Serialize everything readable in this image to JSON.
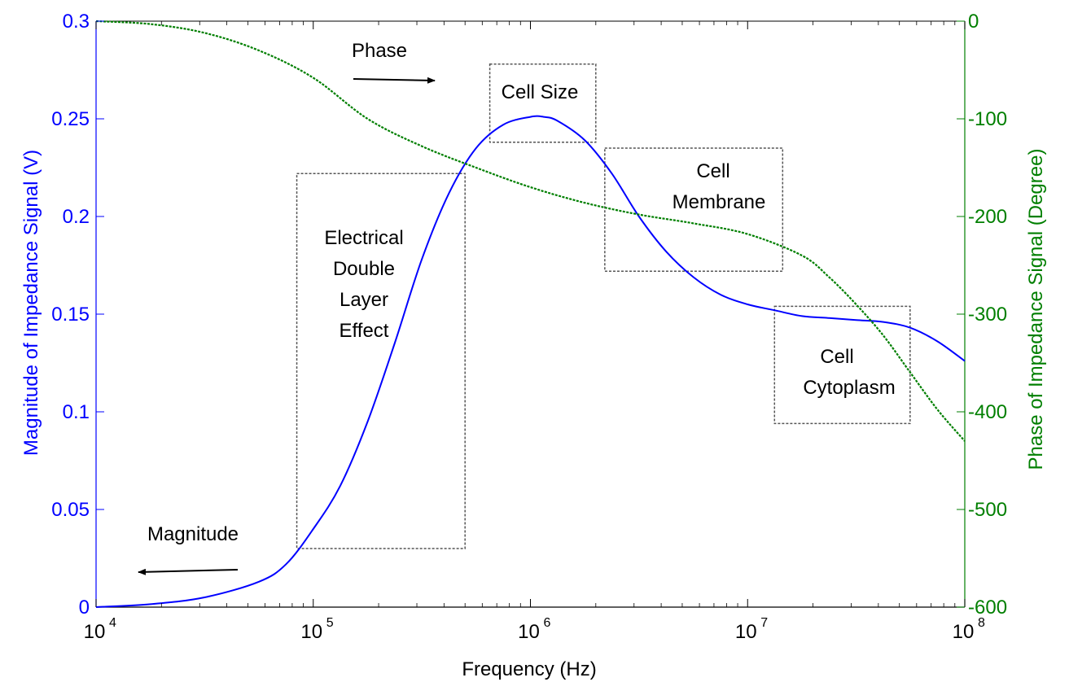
{
  "colors": {
    "magnitude": "#0000ff",
    "phase": "#007f00",
    "annotation": "#000000",
    "box": "#555555"
  },
  "chart_data": {
    "type": "line",
    "title": "",
    "xlabel": "Frequency (Hz)",
    "ylabel_left": "Magnitude of Impedance Signal (V)",
    "ylabel_right": "Phase of Impedance Signal (Degree)",
    "x_scale": "log",
    "xlim": [
      10000,
      100000000
    ],
    "ylim_left": [
      0,
      0.3
    ],
    "ylim_right": [
      -600,
      0
    ],
    "grid": false,
    "x_ticks": [
      {
        "value": 10000,
        "base": "10",
        "exp": "4"
      },
      {
        "value": 100000,
        "base": "10",
        "exp": "5"
      },
      {
        "value": 1000000,
        "base": "10",
        "exp": "6"
      },
      {
        "value": 10000000,
        "base": "10",
        "exp": "7"
      },
      {
        "value": 100000000,
        "base": "10",
        "exp": "8"
      }
    ],
    "y_ticks_left": [
      "0",
      "0.05",
      "0.1",
      "0.15",
      "0.2",
      "0.25",
      "0.3"
    ],
    "y_ticks_left_values": [
      0,
      0.05,
      0.1,
      0.15,
      0.2,
      0.25,
      0.3
    ],
    "y_ticks_right": [
      "-600",
      "-500",
      "-400",
      "-300",
      "-200",
      "-100",
      "0"
    ],
    "y_ticks_right_values": [
      -600,
      -500,
      -400,
      -300,
      -200,
      -100,
      0
    ],
    "series": [
      {
        "name": "Magnitude",
        "axis": "left",
        "style": "solid",
        "x": [
          10000,
          17800,
          31600,
          56200,
          75000,
          100000,
          133000,
          178000,
          237000,
          316000,
          422000,
          562000,
          750000,
          1000000,
          1150000,
          1330000,
          1780000,
          2370000,
          3160000,
          4220000,
          5620000,
          7500000,
          10000000,
          13300000,
          17800000,
          23700000,
          31600000,
          42200000,
          56200000,
          75000000,
          100000000
        ],
        "values": [
          0.0,
          0.0015,
          0.005,
          0.013,
          0.022,
          0.04,
          0.062,
          0.095,
          0.135,
          0.178,
          0.212,
          0.235,
          0.247,
          0.251,
          0.251,
          0.249,
          0.239,
          0.222,
          0.2,
          0.182,
          0.169,
          0.16,
          0.155,
          0.152,
          0.149,
          0.148,
          0.147,
          0.146,
          0.143,
          0.136,
          0.126
        ]
      },
      {
        "name": "Phase",
        "axis": "right",
        "style": "dashed",
        "x": [
          10000,
          17800,
          31600,
          56200,
          100000,
          178000,
          316000,
          562000,
          1000000,
          1780000,
          3160000,
          5620000,
          10000000,
          17800000,
          23700000,
          31600000,
          42200000,
          56200000,
          75000000,
          100000000
        ],
        "values": [
          0,
          -3,
          -12,
          -30,
          -58,
          -100,
          -128,
          -150,
          -170,
          -186,
          -198,
          -207,
          -218,
          -240,
          -262,
          -290,
          -322,
          -360,
          -398,
          -430
        ]
      }
    ],
    "annotations": [
      {
        "label": "Phase",
        "arrow": "right"
      },
      {
        "label": "Magnitude",
        "arrow": "left"
      }
    ],
    "regions": [
      {
        "label_lines": [
          "Electrical",
          "Double",
          "Layer",
          "Effect"
        ]
      },
      {
        "label_lines": [
          "Cell Size"
        ]
      },
      {
        "label_lines": [
          "Cell",
          "Membrane"
        ]
      },
      {
        "label_lines": [
          "Cell",
          "Cytoplasm"
        ]
      }
    ]
  }
}
